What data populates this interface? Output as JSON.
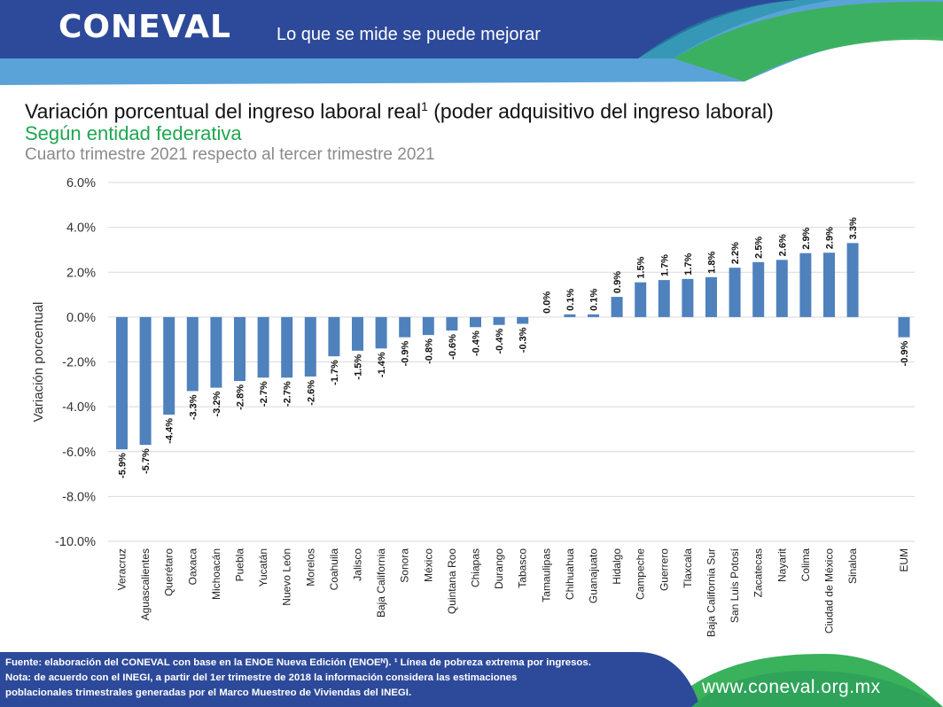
{
  "header": {
    "logo_text": "CONEVAL",
    "slogan": "Lo que se mide se puede mejorar",
    "colors": {
      "blue": "#2d4a9a",
      "light_blue": "#55a0d8",
      "green": "#3ab15b"
    }
  },
  "title": {
    "main": "Variación porcentual del ingreso laboral real",
    "superscript": "1",
    "main_suffix": " (poder adquisitivo del ingreso laboral)",
    "subtitle": "Según entidad federativa",
    "period": "Cuarto trimestre 2021 respecto al tercer trimestre 2021"
  },
  "chart_data": {
    "type": "bar",
    "ylabel": "Variación porcentual",
    "ylim": [
      -10,
      6
    ],
    "yticks": [
      "6.0%",
      "4.0%",
      "2.0%",
      "0.0%",
      "-2.0%",
      "-4.0%",
      "-6.0%",
      "-8.0%",
      "-10.0%"
    ],
    "grid": true,
    "bar_color": "#4f81bd",
    "categories": [
      "Veracruz",
      "Aguascalientes",
      "Querétaro",
      "Oaxaca",
      "Michoacán",
      "Puebla",
      "Yucatán",
      "Nuevo León",
      "Morelos",
      "Coahuila",
      "Jalisco",
      "Baja California",
      "Sonora",
      "México",
      "Quintana Roo",
      "Chiapas",
      "Durango",
      "Tabasco",
      "Tamaulipas",
      "Chihuahua",
      "Guanajuato",
      "Hidalgo",
      "Campeche",
      "Guerrero",
      "Tlaxcala",
      "Baja California Sur",
      "San Luis Potosí",
      "Zacatecas",
      "Nayarit",
      "Colima",
      "Ciudad de México",
      "Sinaloa",
      "EUM"
    ],
    "values": [
      -5.9,
      -5.7,
      -4.35,
      -3.3,
      -3.15,
      -2.85,
      -2.7,
      -2.7,
      -2.65,
      -1.75,
      -1.5,
      -1.4,
      -0.9,
      -0.8,
      -0.6,
      -0.45,
      -0.35,
      -0.3,
      0.0,
      0.12,
      0.12,
      0.9,
      1.55,
      1.65,
      1.7,
      1.78,
      2.2,
      2.45,
      2.55,
      2.85,
      2.87,
      3.3,
      -0.9
    ],
    "labels": [
      "-5.9%",
      "-5.7%",
      "-4.4%",
      "-3.3%",
      "-3.2%",
      "-2.8%",
      "-2.7%",
      "-2.7%",
      "-2.6%",
      "-1.7%",
      "-1.5%",
      "-1.4%",
      "-0.9%",
      "-0.8%",
      "-0.6%",
      "-0.4%",
      "-0.4%",
      "-0.3%",
      "0.0%",
      "0.1%",
      "0.1%",
      "0.9%",
      "1.5%",
      "1.7%",
      "1.7%",
      "1.8%",
      "2.2%",
      "2.5%",
      "2.6%",
      "2.9%",
      "2.9%",
      "3.3%",
      "-0.9%"
    ]
  },
  "footer": {
    "line1": "Fuente: elaboración del CONEVAL con base en la ENOE Nueva Edición (ENOEᴺ). ¹ Línea de pobreza extrema por ingresos.",
    "line2": "Nota: de acuerdo con el INEGI, a partir del 1er trimestre de 2018 la información considera las estimaciones",
    "line3": "poblacionales trimestrales generadas por el Marco Muestreo de Viviendas del INEGI.",
    "url": "www.coneval.org.mx"
  }
}
